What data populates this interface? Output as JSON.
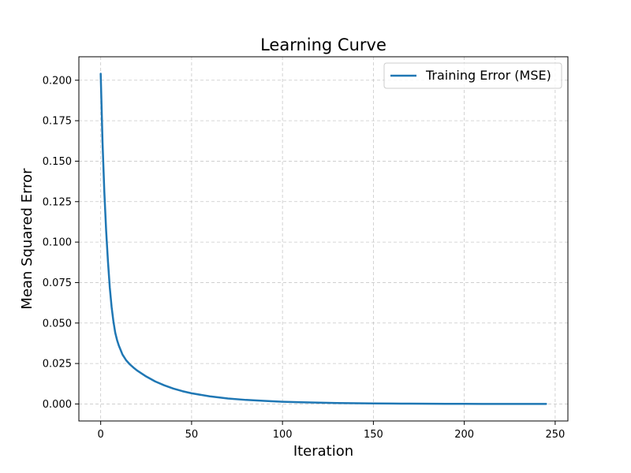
{
  "chart_data": {
    "type": "line",
    "title": "Learning Curve",
    "xlabel": "Iteration",
    "ylabel": "Mean Squared Error",
    "xlim": [
      -12,
      257
    ],
    "ylim": [
      -0.0105,
      0.2145
    ],
    "xticks": [
      0,
      50,
      100,
      150,
      200,
      250
    ],
    "xtick_labels": [
      "0",
      "50",
      "100",
      "150",
      "200",
      "250"
    ],
    "yticks": [
      0.0,
      0.025,
      0.05,
      0.075,
      0.1,
      0.125,
      0.15,
      0.175,
      0.2
    ],
    "ytick_labels": [
      "0.000",
      "0.025",
      "0.050",
      "0.075",
      "0.100",
      "0.125",
      "0.150",
      "0.175",
      "0.200"
    ],
    "grid": true,
    "legend_position": "top-right",
    "series": [
      {
        "name": "Training Error (MSE)",
        "color": "#1f77b4",
        "x": [
          0,
          1,
          2,
          3,
          4,
          5,
          6,
          7,
          8,
          9,
          10,
          12,
          14,
          16,
          18,
          20,
          25,
          30,
          35,
          40,
          45,
          50,
          60,
          70,
          80,
          90,
          100,
          110,
          120,
          130,
          140,
          150,
          160,
          170,
          180,
          190,
          200,
          210,
          220,
          230,
          245
        ],
        "y": [
          0.204,
          0.162,
          0.131,
          0.107,
          0.088,
          0.072,
          0.06,
          0.051,
          0.044,
          0.0395,
          0.036,
          0.0305,
          0.027,
          0.0245,
          0.0225,
          0.0207,
          0.017,
          0.0139,
          0.0115,
          0.0095,
          0.0079,
          0.0066,
          0.0047,
          0.0034,
          0.0025,
          0.0019,
          0.0014,
          0.00105,
          0.0008,
          0.0006,
          0.00045,
          0.00035,
          0.00027,
          0.0002,
          0.00015,
          0.00011,
          8e-05,
          6e-05,
          4e-05,
          3e-05,
          2e-05
        ]
      }
    ]
  }
}
